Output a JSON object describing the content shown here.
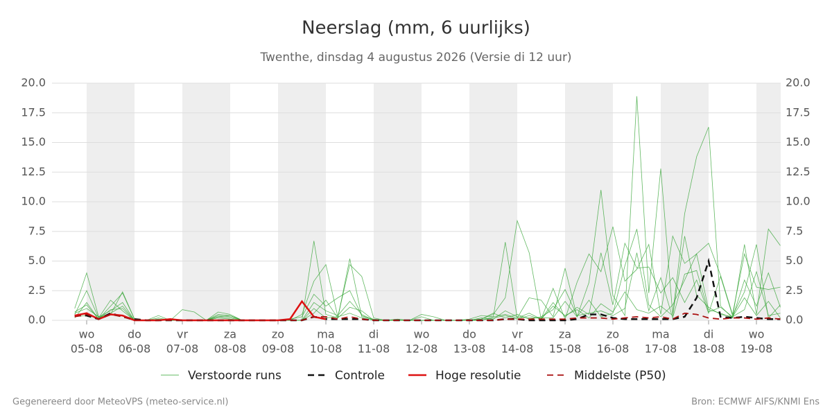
{
  "chart_data": {
    "type": "line",
    "title": "Neerslag (mm, 6 uurlijks)",
    "subtitle": "Twenthe, dinsdag  4 augustus 2026 (Versie di 12 uur)",
    "footer_left": "Gegenereerd door MeteoVPS (meteo-service.nl)",
    "footer_right": "Bron: ECMWF AIFS/KNMI Ens",
    "categories": [
      null,
      "05-08",
      null,
      null,
      null,
      "06-08",
      null,
      null,
      null,
      "07-08",
      null,
      null,
      null,
      "08-08",
      null,
      null,
      null,
      "09-08",
      null,
      null,
      null,
      "10-08",
      null,
      null,
      null,
      "11-08",
      null,
      null,
      null,
      "12-08",
      null,
      null,
      null,
      "13-08",
      null,
      null,
      null,
      "14-08",
      null,
      null,
      null,
      "15-08",
      null,
      null,
      null,
      "16-08",
      null,
      null,
      null,
      "17-08",
      null,
      null,
      null,
      "18-08",
      null,
      null,
      null,
      "19-08",
      null,
      null
    ],
    "weekdays": [
      null,
      "wo",
      null,
      null,
      null,
      "do",
      null,
      null,
      null,
      "vr",
      null,
      null,
      null,
      "za",
      null,
      null,
      null,
      "zo",
      null,
      null,
      null,
      "ma",
      null,
      null,
      null,
      "di",
      null,
      null,
      null,
      "wo",
      null,
      null,
      null,
      "do",
      null,
      null,
      null,
      "vr",
      null,
      null,
      null,
      "za",
      null,
      null,
      null,
      "zo",
      null,
      null,
      null,
      "ma",
      null,
      null,
      null,
      "di",
      null,
      null,
      null,
      "wo",
      null,
      null
    ],
    "ylim": [
      0,
      20
    ],
    "yticks": [
      {
        "value": 0,
        "label": "0.0"
      },
      {
        "value": 2.5,
        "label": "2.5"
      },
      {
        "value": 5,
        "label": "5.0"
      },
      {
        "value": 7.5,
        "label": "7.5"
      },
      {
        "value": 10,
        "label": "10.0"
      },
      {
        "value": 12.5,
        "label": "12.5"
      },
      {
        "value": 15,
        "label": "15.0"
      },
      {
        "value": 17.5,
        "label": "17.5"
      },
      {
        "value": 20,
        "label": "20.0"
      }
    ],
    "y2lim": [
      0,
      20
    ],
    "y2ticks": [
      {
        "value": 0,
        "label": "0.0"
      },
      {
        "value": 2.5,
        "label": "2.5"
      },
      {
        "value": 5,
        "label": "5.0"
      },
      {
        "value": 7.5,
        "label": "7.5"
      },
      {
        "value": 10,
        "label": "10.0"
      },
      {
        "value": 12.5,
        "label": "12.5"
      },
      {
        "value": 15,
        "label": "15.0"
      },
      {
        "value": 17.5,
        "label": "17.5"
      },
      {
        "value": 20,
        "label": "20.0"
      }
    ],
    "grid": true,
    "ensemble": {
      "name": "Verstoorde runs",
      "color": "#2ca02c",
      "members": [
        [
          1.0,
          4.0,
          0.3,
          0.5,
          2.4,
          0.1,
          0,
          0.2,
          0,
          0.9,
          0.7,
          0,
          0.7,
          0.5,
          0,
          0,
          0,
          0,
          0,
          0,
          6.7,
          0.5,
          0.2,
          5.2,
          0.3,
          0.1,
          0,
          0,
          0,
          0.5,
          0.3,
          0,
          0,
          0,
          0,
          0.3,
          6.6,
          0.2,
          1.9,
          1.7,
          0.3,
          4.4,
          0.3,
          3.2,
          11.0,
          2.1,
          0.4,
          18.9,
          2.3,
          12.8,
          0.5,
          9.0,
          13.8,
          16.3,
          1.2,
          0.2,
          6.4,
          0.5,
          7.7,
          6.3
        ],
        [
          0.5,
          2.5,
          0.2,
          1.7,
          0.8,
          0,
          0,
          0.4,
          0,
          0,
          0,
          0,
          0.5,
          0.4,
          0,
          0,
          0,
          0,
          0,
          0.5,
          3.3,
          4.7,
          0.3,
          4.7,
          3.7,
          0.2,
          0,
          0,
          0,
          0.3,
          0,
          0,
          0,
          0,
          0.1,
          0.5,
          1.9,
          8.4,
          5.7,
          0.1,
          2.7,
          0.1,
          3.2,
          5.6,
          4.1,
          7.9,
          3.3,
          4.3,
          6.4,
          0.5,
          7.1,
          4.8,
          5.6,
          6.5,
          3.8,
          0.5,
          5.6,
          2.8,
          2.6,
          2.8
        ],
        [
          0.2,
          1.5,
          0.1,
          1.2,
          2.3,
          0.1,
          0,
          0.1,
          0,
          0,
          0,
          0,
          0.3,
          0.2,
          0,
          0,
          0,
          0,
          0.1,
          0.3,
          2.2,
          1.2,
          1.9,
          2.5,
          0.4,
          0,
          0,
          0.1,
          0,
          0,
          0,
          0,
          0,
          0.1,
          0.4,
          0.3,
          0.5,
          0.2,
          0.6,
          0.1,
          1.5,
          0.3,
          1.1,
          0.5,
          5.7,
          1.3,
          6.5,
          4.4,
          4.5,
          2.3,
          3.6,
          1.5,
          3.4,
          0.6,
          3.7,
          0.4,
          2.4,
          6.4,
          0.2,
          1.3
        ],
        [
          0.6,
          1.0,
          0.3,
          0.8,
          1.5,
          0,
          0,
          0,
          0,
          0,
          0,
          0,
          0.3,
          0.4,
          0,
          0,
          0,
          0,
          0,
          0,
          1.5,
          0.8,
          0.4,
          1.6,
          0.5,
          0,
          0,
          0,
          0,
          0,
          0,
          0,
          0,
          0,
          0.2,
          0.1,
          0.8,
          0.3,
          0.2,
          0.2,
          0.2,
          1.6,
          0.3,
          1.7,
          0.3,
          0.6,
          4.6,
          7.7,
          1.3,
          0.3,
          1.3,
          3.4,
          5.6,
          0.9,
          0.6,
          0.2,
          3.4,
          1.2,
          4.0,
          1.1
        ],
        [
          0.3,
          0.4,
          0.2,
          0.6,
          1.2,
          0,
          0,
          0,
          0,
          0,
          0,
          0,
          0.2,
          0.1,
          0,
          0,
          0,
          0,
          0,
          0,
          1.0,
          0.2,
          0.3,
          0.6,
          0.2,
          0,
          0,
          0,
          0,
          0,
          0,
          0,
          0,
          0,
          0,
          0.2,
          0.4,
          0.1,
          0.4,
          0.1,
          1.2,
          0.4,
          0.9,
          0.2,
          1.4,
          0.7,
          2.4,
          0.9,
          0.6,
          1.2,
          0.4,
          7.1,
          2.1,
          1.1,
          0.5,
          0.3,
          1.9,
          0.4,
          1.6,
          0.2
        ],
        [
          0.7,
          1.3,
          0.1,
          0.9,
          1.0,
          0,
          0,
          0,
          0,
          0,
          0,
          0,
          0.4,
          0.3,
          0,
          0,
          0,
          0,
          0,
          0,
          0.6,
          1.7,
          0.2,
          1.1,
          0.8,
          0,
          0,
          0,
          0,
          0,
          0,
          0,
          0,
          0,
          0.1,
          0.6,
          0.2,
          0.5,
          0.1,
          0.3,
          0.9,
          2.6,
          0.4,
          0.6,
          0.8,
          0.4,
          1.0,
          5.7,
          0.8,
          3.6,
          0.2,
          3.9,
          4.2,
          0.7,
          1.1,
          0.3,
          0.9,
          4.1,
          0.4,
          0.6
        ]
      ]
    },
    "series": [
      {
        "name": "Controle",
        "color": "#111111",
        "dash": true,
        "width": 2.5,
        "values": [
          0.4,
          0.4,
          0.1,
          0.6,
          0.3,
          0.1,
          0,
          0,
          0,
          0,
          0,
          0,
          0,
          0,
          0,
          0,
          0,
          0,
          0,
          0,
          0.3,
          0.1,
          0.1,
          0.1,
          0.1,
          0,
          0,
          0,
          0,
          0,
          0,
          0,
          0,
          0,
          0,
          0,
          0.1,
          0.1,
          0,
          0,
          0,
          0,
          0.1,
          0.5,
          0.5,
          0.2,
          0.1,
          0.1,
          0.1,
          0.1,
          0.1,
          0.3,
          1.9,
          5.0,
          0.3,
          0.2,
          0.3,
          0.2,
          0.1,
          0.1
        ]
      },
      {
        "name": "Hoge resolutie",
        "color": "#dd1111",
        "dash": false,
        "width": 2.5,
        "values": [
          0.4,
          0.6,
          0.1,
          0.5,
          0.4,
          0,
          0,
          0,
          0.1,
          0,
          0,
          0,
          0,
          0,
          0,
          0,
          0,
          0,
          0.1,
          1.6,
          0.3,
          0.1,
          null,
          null,
          null,
          null,
          null,
          null,
          null,
          null,
          null,
          null,
          null,
          null,
          null,
          null,
          null,
          null,
          null,
          null,
          null,
          null,
          null,
          null,
          null,
          null,
          null,
          null,
          null,
          null,
          null,
          null,
          null,
          null,
          null,
          null,
          null,
          null,
          null,
          null
        ]
      },
      {
        "name": "Middelste (P50)",
        "color": "#aa1111",
        "dash": true,
        "width": 1.8,
        "values": [
          0.3,
          0.5,
          0.1,
          0.5,
          0.3,
          0,
          0,
          0,
          0,
          0,
          0,
          0,
          0,
          0,
          0,
          0,
          0,
          0,
          0,
          0,
          0.3,
          0.3,
          0.1,
          0.3,
          0.1,
          0,
          0,
          0,
          0,
          0,
          0,
          0,
          0,
          0,
          0,
          0,
          0.1,
          0.1,
          0.1,
          0.1,
          0.1,
          0.1,
          0.2,
          0.2,
          0.2,
          0.1,
          0.2,
          0.3,
          0.2,
          0.3,
          0.1,
          0.6,
          0.5,
          0.2,
          0.1,
          0.2,
          0.2,
          0.1,
          0.2,
          0.1
        ]
      }
    ]
  }
}
